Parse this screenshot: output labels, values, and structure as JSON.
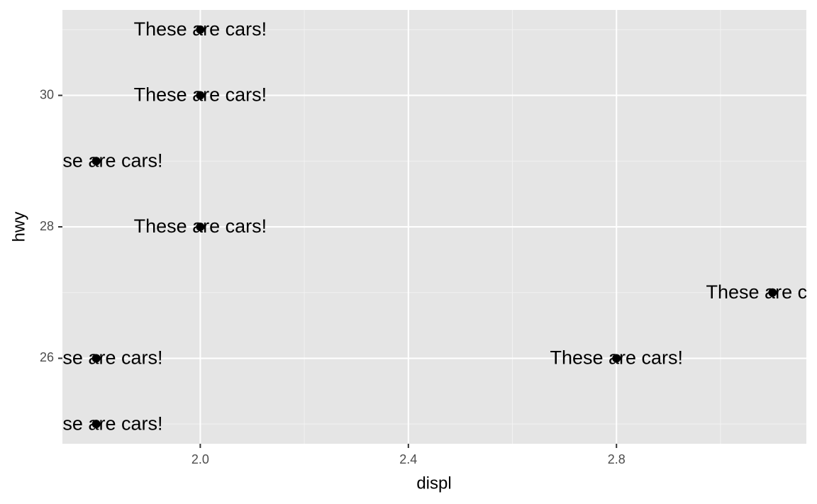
{
  "chart_data": {
    "type": "scatter",
    "x_label": "displ",
    "y_label": "hwy",
    "x": [
      2.0,
      2.0,
      1.8,
      2.0,
      3.1,
      2.8,
      1.8,
      1.8
    ],
    "values": [
      31,
      30,
      29,
      28,
      27,
      26,
      26,
      25
    ],
    "labels": [
      "These are cars!",
      "These are cars!",
      "These are cars!",
      "These are cars!",
      "These are cars!",
      "These are cars!",
      "These are cars!",
      "These are cars!"
    ],
    "color": "#000000",
    "xlim": [
      1.735,
      3.165
    ],
    "ylim": [
      24.7,
      31.3
    ],
    "xticks": [
      {
        "value": 2,
        "label": "2.0"
      },
      2.4,
      2.8
    ],
    "yticks": [
      26,
      28,
      30
    ],
    "minor_xticks": [
      2.2,
      2.6,
      3.0
    ],
    "minor_yticks": [
      25,
      27,
      29,
      31
    ],
    "grid": true
  }
}
